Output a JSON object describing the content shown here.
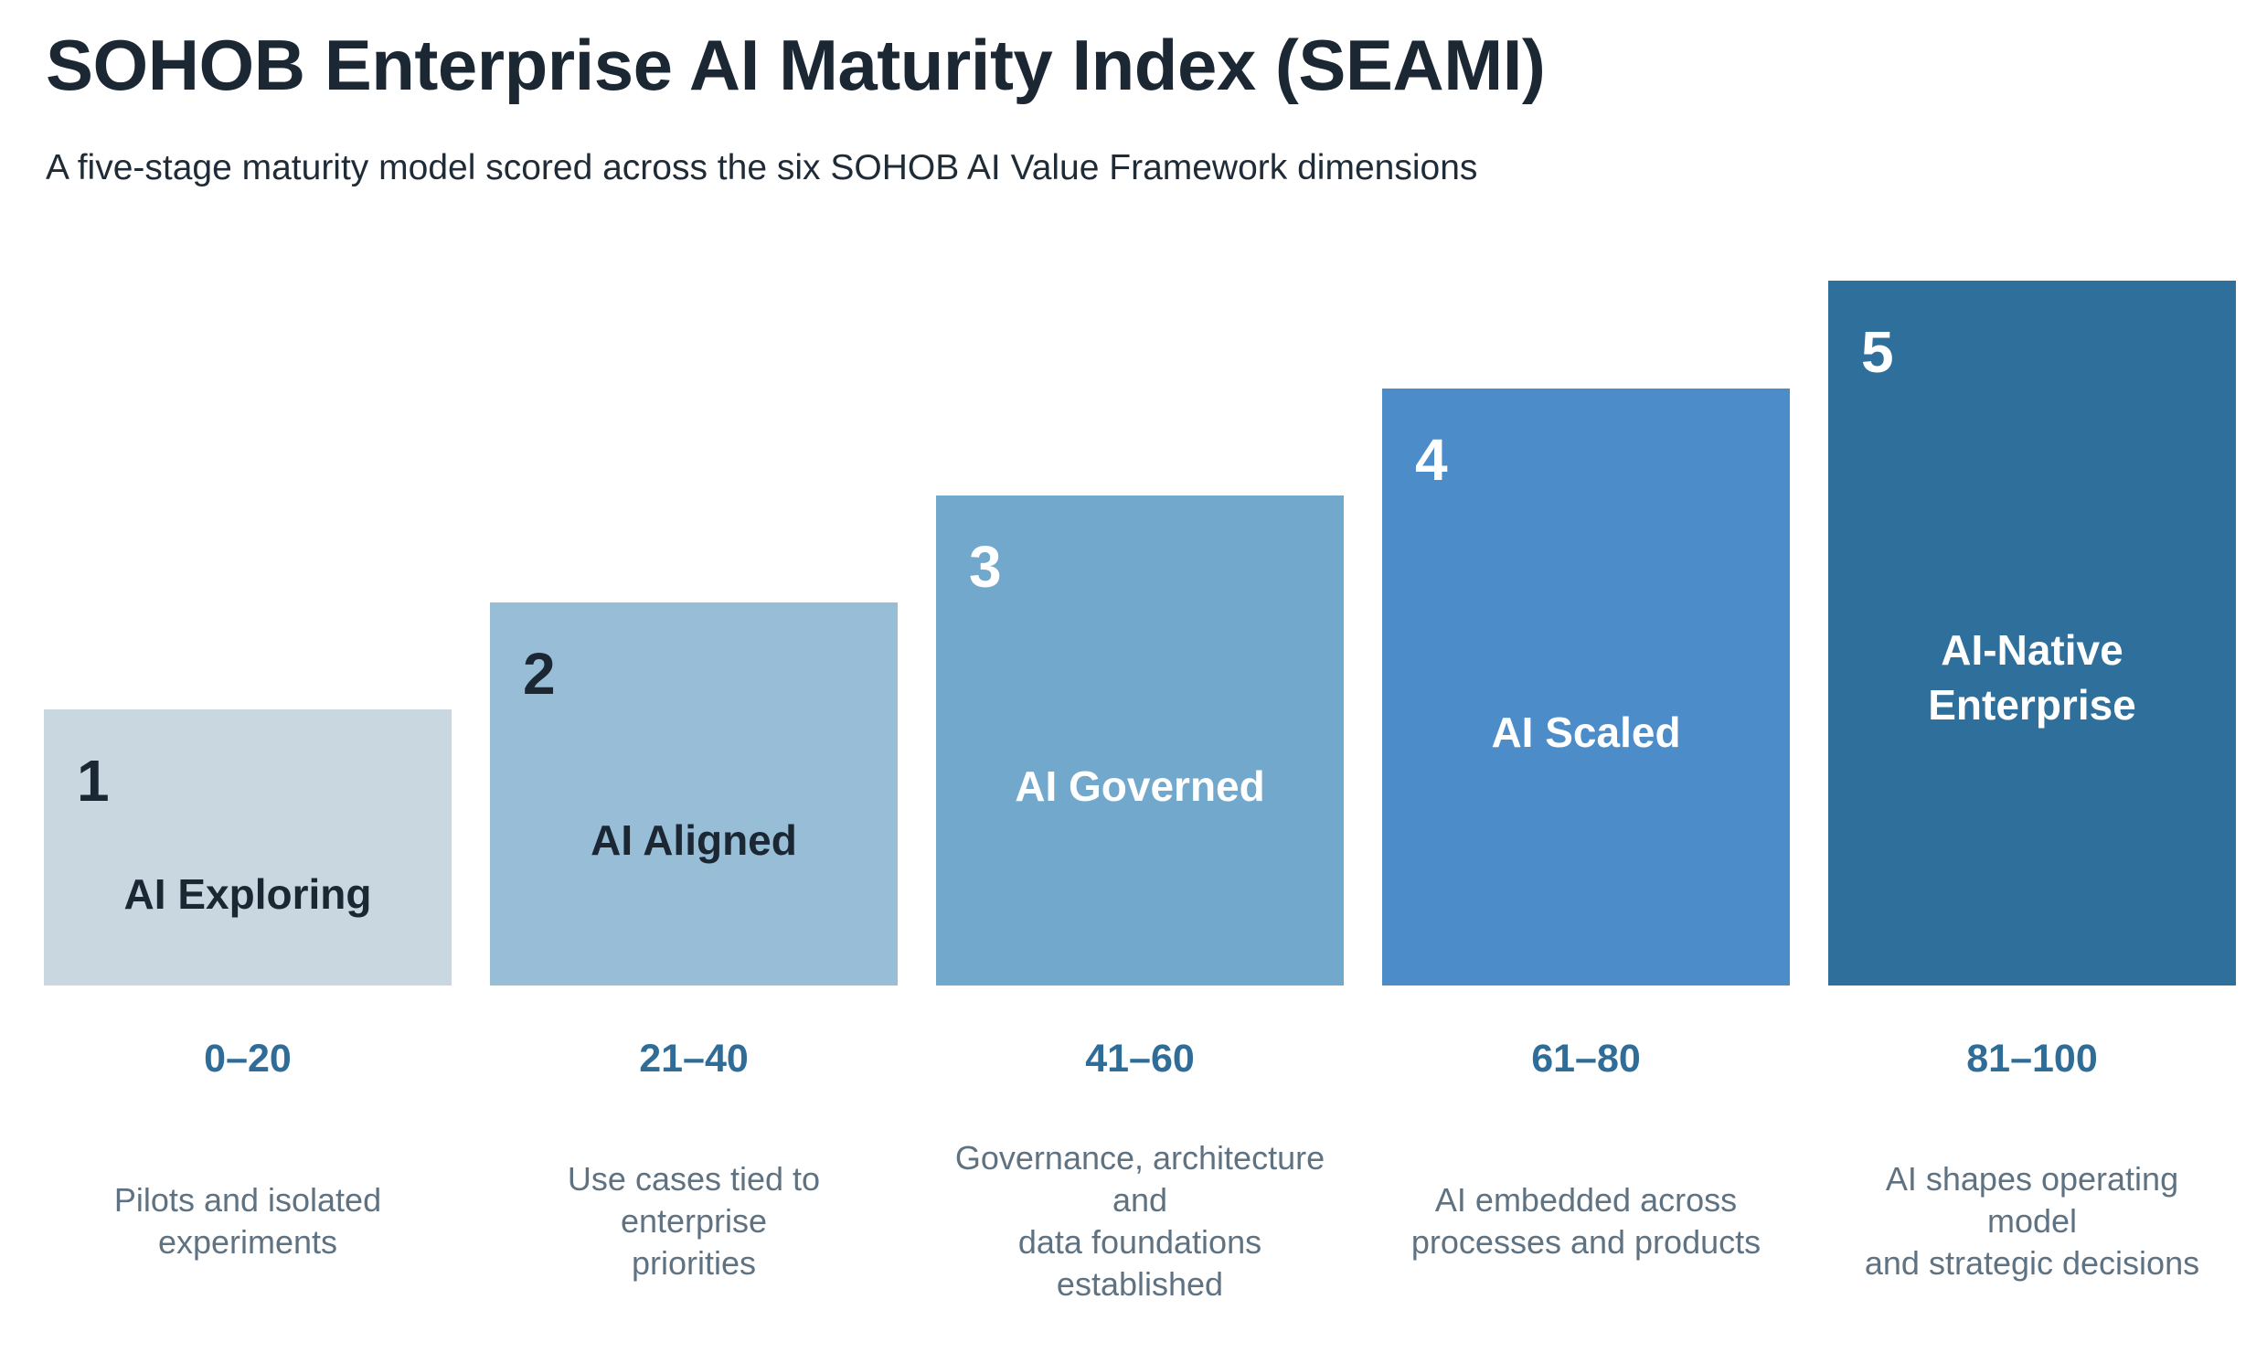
{
  "title": "SOHOB Enterprise AI Maturity Index (SEAMI)",
  "subtitle": "A five-stage maturity model scored across the six SOHOB AI Value Framework dimensions",
  "stages": [
    {
      "number": "1",
      "name_lines": [
        "AI Exploring"
      ],
      "range": "0–20",
      "description_lines": [
        "Pilots and isolated",
        "experiments"
      ],
      "color": "#c9d7e0",
      "text_color": "#1b2733"
    },
    {
      "number": "2",
      "name_lines": [
        "AI Aligned"
      ],
      "range": "21–40",
      "description_lines": [
        "Use cases tied to",
        "enterprise",
        "priorities"
      ],
      "color": "#98bdd7",
      "text_color": "#1b2733"
    },
    {
      "number": "3",
      "name_lines": [
        "AI Governed"
      ],
      "range": "41–60",
      "description_lines": [
        "Governance, architecture",
        "and",
        "data foundations",
        "established"
      ],
      "color": "#71a8cc",
      "text_color": "#ffffff"
    },
    {
      "number": "4",
      "name_lines": [
        "AI Scaled"
      ],
      "range": "61–80",
      "description_lines": [
        "AI embedded across",
        "processes and products"
      ],
      "color": "#4b8cc9",
      "text_color": "#ffffff"
    },
    {
      "number": "5",
      "name_lines": [
        "AI-Native",
        "Enterprise"
      ],
      "range": "81–100",
      "description_lines": [
        "AI shapes operating",
        "model",
        "and strategic decisions"
      ],
      "color": "#2f6f9b",
      "text_color": "#ffffff"
    }
  ]
}
